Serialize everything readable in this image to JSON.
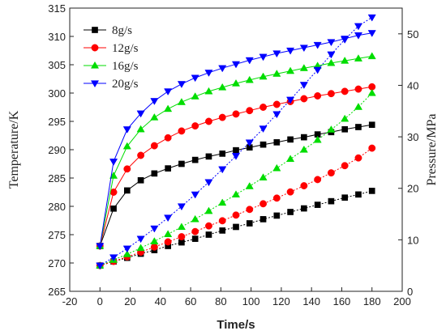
{
  "chart_data": {
    "type": "line",
    "xlabel": "Time/s",
    "ylabel": "Temperature/K",
    "y2label": "Pressure/MPa",
    "xlim": [
      -20,
      200
    ],
    "ylim": [
      265,
      315
    ],
    "y2lim": [
      0,
      55
    ],
    "xticks": [
      -20,
      0,
      20,
      40,
      60,
      80,
      100,
      120,
      140,
      160,
      180,
      200
    ],
    "yticks": [
      265,
      270,
      275,
      280,
      285,
      290,
      295,
      300,
      305,
      310,
      315
    ],
    "y2ticks": [
      0,
      10,
      20,
      30,
      40,
      50
    ],
    "grid": false,
    "legend_position": "top-left",
    "x": [
      0,
      9,
      18,
      27,
      36,
      45,
      54,
      63,
      72,
      81,
      90,
      99,
      108,
      117,
      126,
      135,
      144,
      153,
      162,
      171,
      180
    ],
    "series": [
      {
        "name": "8g/s",
        "color": "#000000",
        "marker": "square",
        "axis": "left",
        "values": [
          273.0,
          279.6,
          282.8,
          284.6,
          285.8,
          286.7,
          287.5,
          288.2,
          288.8,
          289.3,
          289.9,
          290.4,
          290.9,
          291.3,
          291.8,
          292.2,
          292.7,
          293.1,
          293.6,
          294.0,
          294.4
        ]
      },
      {
        "name": "12g/s",
        "color": "#ff0000",
        "marker": "circle",
        "axis": "left",
        "values": [
          273.0,
          282.5,
          286.6,
          289.0,
          290.7,
          292.1,
          293.3,
          294.2,
          295.0,
          295.7,
          296.3,
          296.9,
          297.5,
          298.0,
          298.5,
          299.0,
          299.5,
          299.9,
          300.3,
          300.7,
          301.1
        ]
      },
      {
        "name": "16g/s",
        "color": "#00dd00",
        "marker": "triangle-up",
        "axis": "left",
        "values": [
          273.0,
          285.4,
          290.6,
          293.6,
          295.7,
          297.2,
          298.4,
          299.4,
          300.3,
          301.0,
          301.7,
          302.3,
          302.9,
          303.4,
          303.9,
          304.4,
          304.8,
          305.3,
          305.7,
          306.1,
          306.5
        ]
      },
      {
        "name": "20g/s",
        "color": "#0000ff",
        "marker": "triangle-down",
        "axis": "left",
        "values": [
          273.0,
          287.9,
          293.6,
          296.4,
          298.6,
          300.3,
          301.6,
          302.7,
          303.6,
          304.4,
          305.1,
          305.8,
          306.4,
          307.0,
          307.5,
          308.0,
          308.5,
          309.0,
          309.6,
          310.2,
          310.6
        ]
      },
      {
        "name": "",
        "color": "#000000",
        "marker": "square",
        "axis": "right",
        "values": [
          5.0,
          5.8,
          6.5,
          7.3,
          8.0,
          8.8,
          9.5,
          10.2,
          11.0,
          11.8,
          12.5,
          13.2,
          14.0,
          14.7,
          15.4,
          16.1,
          16.8,
          17.5,
          18.2,
          18.8,
          19.5
        ]
      },
      {
        "name": "",
        "color": "#ff0000",
        "marker": "circle",
        "axis": "right",
        "values": [
          5.0,
          5.8,
          6.7,
          7.6,
          8.6,
          9.6,
          10.6,
          11.6,
          12.7,
          13.7,
          14.8,
          15.9,
          17.0,
          18.1,
          19.3,
          20.5,
          21.7,
          23.0,
          24.4,
          25.9,
          27.8
        ]
      },
      {
        "name": "",
        "color": "#00dd00",
        "marker": "triangle-up",
        "axis": "right",
        "values": [
          5.0,
          6.1,
          7.2,
          8.4,
          9.7,
          11.1,
          12.5,
          14.0,
          15.6,
          17.2,
          18.8,
          20.4,
          22.1,
          23.9,
          25.7,
          27.5,
          29.4,
          31.4,
          33.5,
          35.8,
          38.5
        ]
      },
      {
        "name": "",
        "color": "#0000ff",
        "marker": "triangle-down",
        "axis": "right",
        "values": [
          5.0,
          6.6,
          8.3,
          10.2,
          12.2,
          14.3,
          16.5,
          18.8,
          21.2,
          23.7,
          26.3,
          28.9,
          31.6,
          34.4,
          37.2,
          40.1,
          43.0,
          46.0,
          48.9,
          51.5,
          53.2
        ]
      }
    ]
  }
}
